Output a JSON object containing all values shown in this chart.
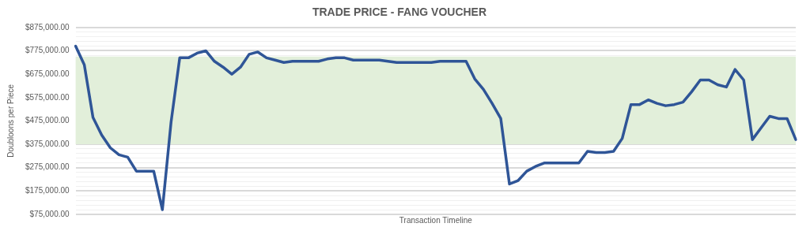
{
  "chart_data": {
    "type": "line",
    "title": "TRADE PRICE - FANG VOUCHER",
    "xlabel": "Transaction Timeline",
    "ylabel": "Doubloons per Piece",
    "categories": [
      null,
      null,
      null,
      null,
      null,
      null,
      null,
      null,
      null,
      null,
      null,
      null,
      null,
      null,
      null,
      null,
      null,
      null,
      null,
      null,
      null,
      null,
      null,
      null,
      null,
      null,
      null,
      null,
      null,
      null,
      null,
      null,
      null,
      null,
      null,
      null,
      null,
      null,
      null,
      null,
      null,
      null,
      null,
      null,
      null,
      null,
      null,
      null,
      null,
      null,
      null,
      null,
      null,
      null,
      null,
      null,
      null,
      null,
      null,
      null,
      null,
      null,
      null,
      null,
      null,
      null,
      null,
      null,
      null,
      null,
      null,
      null,
      null,
      null,
      null,
      null,
      null,
      null,
      null,
      null,
      null,
      null,
      null,
      null
    ],
    "series": [
      {
        "color": "#2f5597",
        "values": [
          795000,
          715000,
          490000,
          415000,
          360000,
          330000,
          320000,
          260000,
          260000,
          260000,
          95000,
          470000,
          745000,
          745000,
          765000,
          775000,
          730000,
          705000,
          675000,
          705000,
          760000,
          770000,
          745000,
          735000,
          725000,
          730000,
          730000,
          730000,
          730000,
          740000,
          745000,
          745000,
          735000,
          735000,
          735000,
          735000,
          730000,
          725000,
          725000,
          725000,
          725000,
          725000,
          730000,
          730000,
          730000,
          730000,
          655000,
          610000,
          550000,
          485000,
          205000,
          220000,
          260000,
          280000,
          295000,
          295000,
          295000,
          295000,
          295000,
          345000,
          340000,
          340000,
          345000,
          400000,
          545000,
          545000,
          565000,
          550000,
          540000,
          545000,
          555000,
          600000,
          650000,
          650000,
          630000,
          620000,
          695000,
          650000,
          395000,
          445000,
          495000,
          485000,
          485000,
          395000
        ]
      }
    ],
    "ylim": [
      75000,
      875000
    ],
    "yticks": [
      {
        "value": 75000,
        "label": "$75,000.00"
      },
      {
        "value": 95000,
        "label": null
      },
      {
        "value": 115000,
        "label": null
      },
      {
        "value": 135000,
        "label": null
      },
      {
        "value": 155000,
        "label": null
      },
      {
        "value": 175000,
        "label": "$175,000.00"
      },
      {
        "value": 195000,
        "label": null
      },
      {
        "value": 215000,
        "label": null
      },
      {
        "value": 235000,
        "label": null
      },
      {
        "value": 255000,
        "label": null
      },
      {
        "value": 275000,
        "label": "$275,000.00"
      },
      {
        "value": 295000,
        "label": null
      },
      {
        "value": 315000,
        "label": null
      },
      {
        "value": 335000,
        "label": null
      },
      {
        "value": 355000,
        "label": null
      },
      {
        "value": 375000,
        "label": "$375,000.00"
      },
      {
        "value": 475000,
        "label": "$475,000.00"
      },
      {
        "value": 575000,
        "label": "$575,000.00"
      },
      {
        "value": 675000,
        "label": "$675,000.00"
      },
      {
        "value": 755000,
        "label": null
      },
      {
        "value": 775000,
        "label": "$775,000.00"
      },
      {
        "value": 795000,
        "label": null
      },
      {
        "value": 815000,
        "label": null
      },
      {
        "value": 835000,
        "label": null
      },
      {
        "value": 855000,
        "label": null
      },
      {
        "value": 875000,
        "label": "$875,000.00"
      }
    ],
    "bands": [
      {
        "axis": "y",
        "from": 375000,
        "to": 750000,
        "color": "#e2efda"
      }
    ],
    "grid": "y",
    "legend": false,
    "marker": "none",
    "line_style": "solid"
  }
}
